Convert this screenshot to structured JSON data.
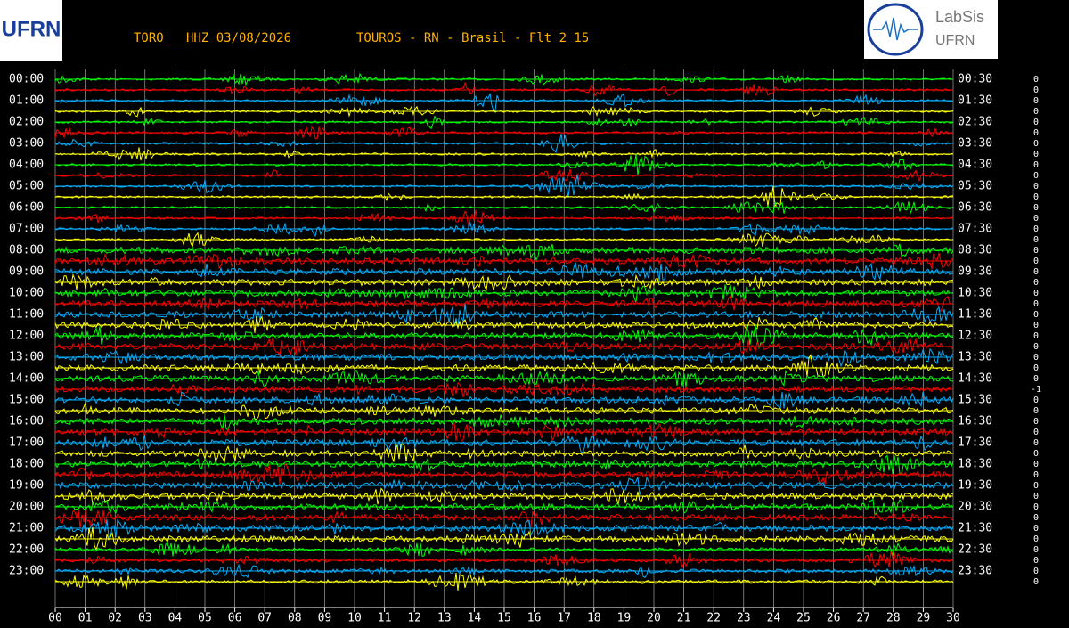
{
  "header": {
    "station": "TORO___HHZ 03/08/2026",
    "location": "TOUROS - RN - Brasil - Flt 2 15"
  },
  "logo_left": {
    "text": "UFRN"
  },
  "logo_right": {
    "title": "LabSis",
    "subtitle": "UFRN"
  },
  "left_labels": [
    "00:00",
    "01:00",
    "02:00",
    "03:00",
    "04:00",
    "05:00",
    "06:00",
    "07:00",
    "08:00",
    "09:00",
    "10:00",
    "11:00",
    "12:00",
    "13:00",
    "14:00",
    "15:00",
    "16:00",
    "17:00",
    "18:00",
    "19:00",
    "20:00",
    "21:00",
    "22:00",
    "23:00"
  ],
  "right_labels": [
    "00:30",
    "01:30",
    "02:30",
    "03:30",
    "04:30",
    "05:30",
    "06:30",
    "07:30",
    "08:30",
    "09:30",
    "10:30",
    "11:30",
    "12:30",
    "13:30",
    "14:30",
    "15:30",
    "16:30",
    "17:30",
    "18:30",
    "19:30",
    "20:30",
    "21:30",
    "22:30",
    "23:30"
  ],
  "right_values": [
    0,
    0,
    0,
    0,
    0,
    0,
    0,
    0,
    0,
    0,
    0,
    0,
    0,
    0,
    0,
    0,
    0,
    0,
    0,
    0,
    0,
    0,
    0,
    0,
    0,
    0,
    0,
    0,
    0,
    -1,
    0,
    0,
    0,
    0,
    0,
    0,
    0,
    0,
    0,
    0,
    0,
    0,
    0,
    0,
    0,
    0,
    0,
    0
  ],
  "x_ticks": [
    "00",
    "01",
    "02",
    "03",
    "04",
    "05",
    "06",
    "07",
    "08",
    "09",
    "10",
    "11",
    "12",
    "13",
    "14",
    "15",
    "16",
    "17",
    "18",
    "19",
    "20",
    "21",
    "22",
    "23",
    "24",
    "25",
    "26",
    "27",
    "28",
    "29",
    "30"
  ],
  "trace_colors": [
    "#00ff00",
    "#ff0000",
    "#00b0ff",
    "#ffff00"
  ]
}
